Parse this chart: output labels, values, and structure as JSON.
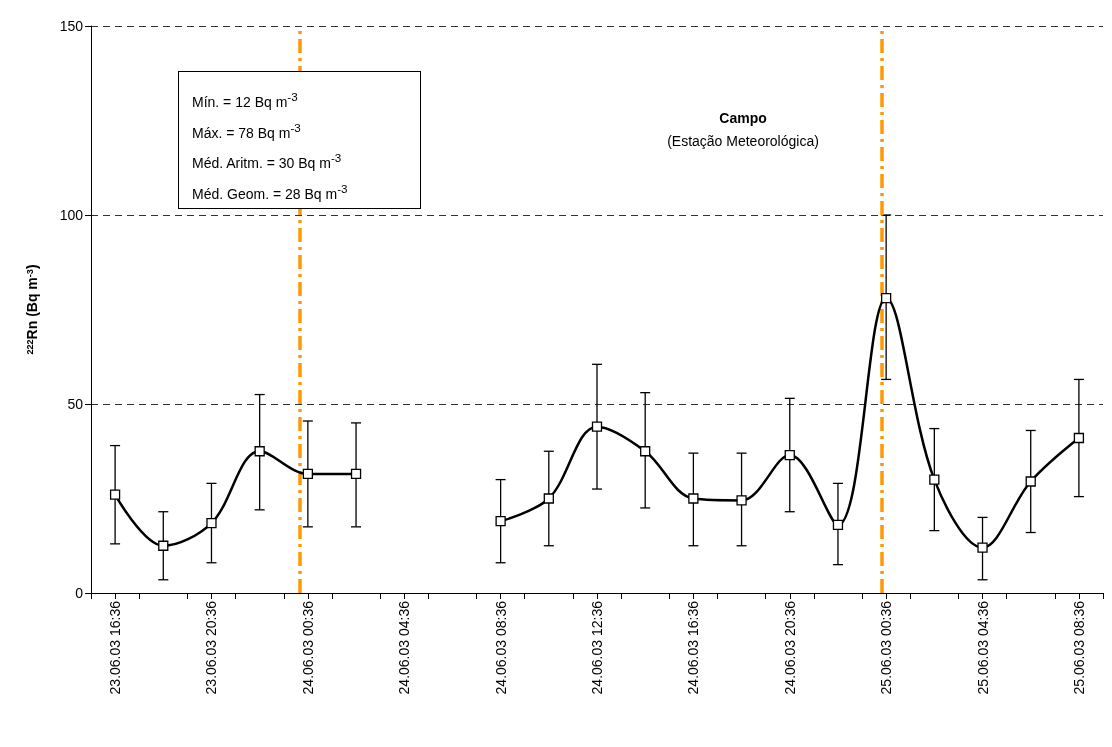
{
  "chart_data": {
    "type": "line",
    "ylabel": "$^{222}$Rn (Bq m$^{-3}$)",
    "x": [
      "--06-23T16:36",
      "--06-23T18:36",
      "--06-23T20:36",
      "--06-23T22:36",
      "--06-24T00:36",
      "--06-24T02:36",
      "--06-24T04:36",
      "--06-24T06:36",
      "--06-24T08:36",
      "--06-24T10:36",
      "--06-24T12:36",
      "--06-24T14:36",
      "--06-24T16:36",
      "--06-24T18:36",
      "--06-24T20:36",
      "--06-24T22:36",
      "--06-25T00:36",
      "--06-25T02:36",
      "--06-25T04:36",
      "--06-25T06:36",
      "--06-25T08:36"
    ],
    "series": [
      {
        "color": "#000000",
        "values": [
          26,
          12.5,
          18.5,
          37.5,
          31.5,
          31.5,
          null,
          null,
          19,
          25,
          44,
          37.5,
          25,
          24.5,
          36.5,
          18,
          78,
          30,
          12,
          29.5,
          41
        ],
        "errors": [
          [
            13,
            39
          ],
          [
            3.5,
            21.5
          ],
          [
            8,
            29
          ],
          [
            22,
            52.5
          ],
          [
            17.5,
            45.5
          ],
          [
            17.5,
            45
          ],
          null,
          null,
          [
            8,
            30
          ],
          [
            12.5,
            37.5
          ],
          [
            27.5,
            60.5
          ],
          [
            22.5,
            53
          ],
          [
            12.5,
            37
          ],
          [
            12.5,
            37
          ],
          [
            21.5,
            51.5
          ],
          [
            7.5,
            29
          ],
          [
            56.5,
            100
          ],
          [
            16.5,
            43.5
          ],
          [
            3.5,
            20
          ],
          [
            16,
            43
          ],
          [
            25.5,
            56.5
          ]
        ]
      }
    ],
    "xlim": [
      "--06-23T15:36",
      "--06-25T09:36"
    ],
    "xticks": [
      {
        "value": "--06-23T15:36",
        "label": null
      },
      {
        "value": "--06-23T16:36",
        "label": "23.06.03 16:36"
      },
      {
        "value": "--06-23T17:36",
        "label": null
      },
      {
        "value": "--06-23T19:36",
        "label": null
      },
      {
        "value": "--06-23T20:36",
        "label": "23.06.03 20:36"
      },
      {
        "value": "--06-23T21:36",
        "label": null
      },
      {
        "value": "--06-23T23:36",
        "label": null
      },
      {
        "value": "--06-24T00:36",
        "label": "24.06.03 00:36"
      },
      {
        "value": "--06-24T01:36",
        "label": null
      },
      {
        "value": "--06-24T03:36",
        "label": null
      },
      {
        "value": "--06-24T04:36",
        "label": "24.06.03 04:36"
      },
      {
        "value": "--06-24T05:36",
        "label": null
      },
      {
        "value": "--06-24T07:36",
        "label": null
      },
      {
        "value": "--06-24T08:36",
        "label": "24.06.03 08:36"
      },
      {
        "value": "--06-24T09:36",
        "label": null
      },
      {
        "value": "--06-24T11:36",
        "label": null
      },
      {
        "value": "--06-24T12:36",
        "label": "24.06.03 12:36"
      },
      {
        "value": "--06-24T13:36",
        "label": null
      },
      {
        "value": "--06-24T15:36",
        "label": null
      },
      {
        "value": "--06-24T16:36",
        "label": "24.06.03 16:36"
      },
      {
        "value": "--06-24T17:36",
        "label": null
      },
      {
        "value": "--06-24T19:36",
        "label": null
      },
      {
        "value": "--06-24T20:36",
        "label": "24.06.03 20:36"
      },
      {
        "value": "--06-24T21:36",
        "label": null
      },
      {
        "value": "--06-24T23:36",
        "label": null
      },
      {
        "value": "--06-25T00:36",
        "label": "25.06.03 00:36"
      },
      {
        "value": "--06-25T01:36",
        "label": null
      },
      {
        "value": "--06-25T03:36",
        "label": null
      },
      {
        "value": "--06-25T04:36",
        "label": "25.06.03 04:36"
      },
      {
        "value": "--06-25T05:36",
        "label": null
      },
      {
        "value": "--06-25T07:36",
        "label": null
      },
      {
        "value": "--06-25T08:36",
        "label": "25.06.03 08:36"
      },
      {
        "value": "--06-25T09:36",
        "label": null
      }
    ],
    "ylim": [
      0,
      150
    ],
    "yticks": [
      0,
      50,
      100,
      150
    ],
    "grid": "y",
    "marker": "square",
    "line_style": "solid",
    "ref_lines": [
      {
        "axis": "x",
        "value": "--06-24T00:15",
        "color": "#ff9900",
        "line_style": "dashed"
      },
      {
        "axis": "x",
        "value": "--06-25T00:25",
        "color": "#ff9900",
        "line_style": "dashed"
      }
    ],
    "annotations": [
      "Mín. = 12 Bq m$^{-3}$",
      "Máx. = 78 Bq m$^{-3}$",
      "Méd. Aritm. = 30 Bq m$^{-3}$",
      "Méd. Geom. = 28 Bq m$^{-3}$",
      "Campo",
      "(Estação Meteorológica)"
    ]
  }
}
